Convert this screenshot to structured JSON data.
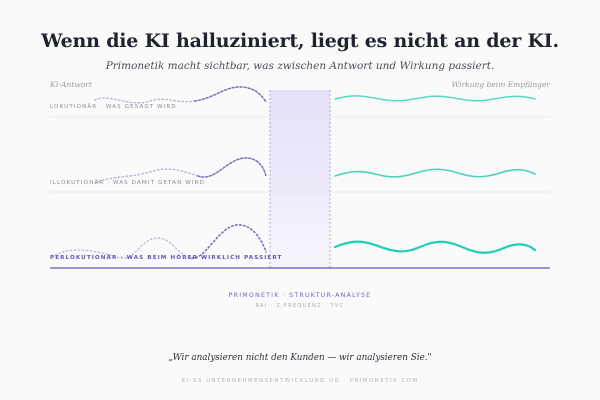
{
  "header": {
    "title": "Wenn die KI halluziniert, liegt es nicht an der KI.",
    "subtitle": "Primonetik macht sichtbar, was zwischen Antwort und Wirkung passiert."
  },
  "columns": {
    "left": "KI-Antwort",
    "right": "Wirkung beim Empfänger"
  },
  "rows": [
    {
      "label": "Lokutionär · was gesagt wird"
    },
    {
      "label": "Illokutionär · was damit getan wird"
    },
    {
      "label": "Perlokutionär · was beim Hörer wirklich passiert"
    }
  ],
  "analysis": {
    "label": "Primonetik · Struktur-Analyse",
    "sublabel": "RAI · Z-Frequenz · TVC"
  },
  "quote": "„Wir analysieren nicht den Kunden — wir analysieren Sie.\"",
  "footer": "KI-SS Unternehmensentwicklung UG · primonetik.com",
  "colors": {
    "ink": "#1f2330",
    "purple": "#7a5fc0",
    "teal": "#2dd4bf",
    "grid": "#e2e3e7"
  }
}
